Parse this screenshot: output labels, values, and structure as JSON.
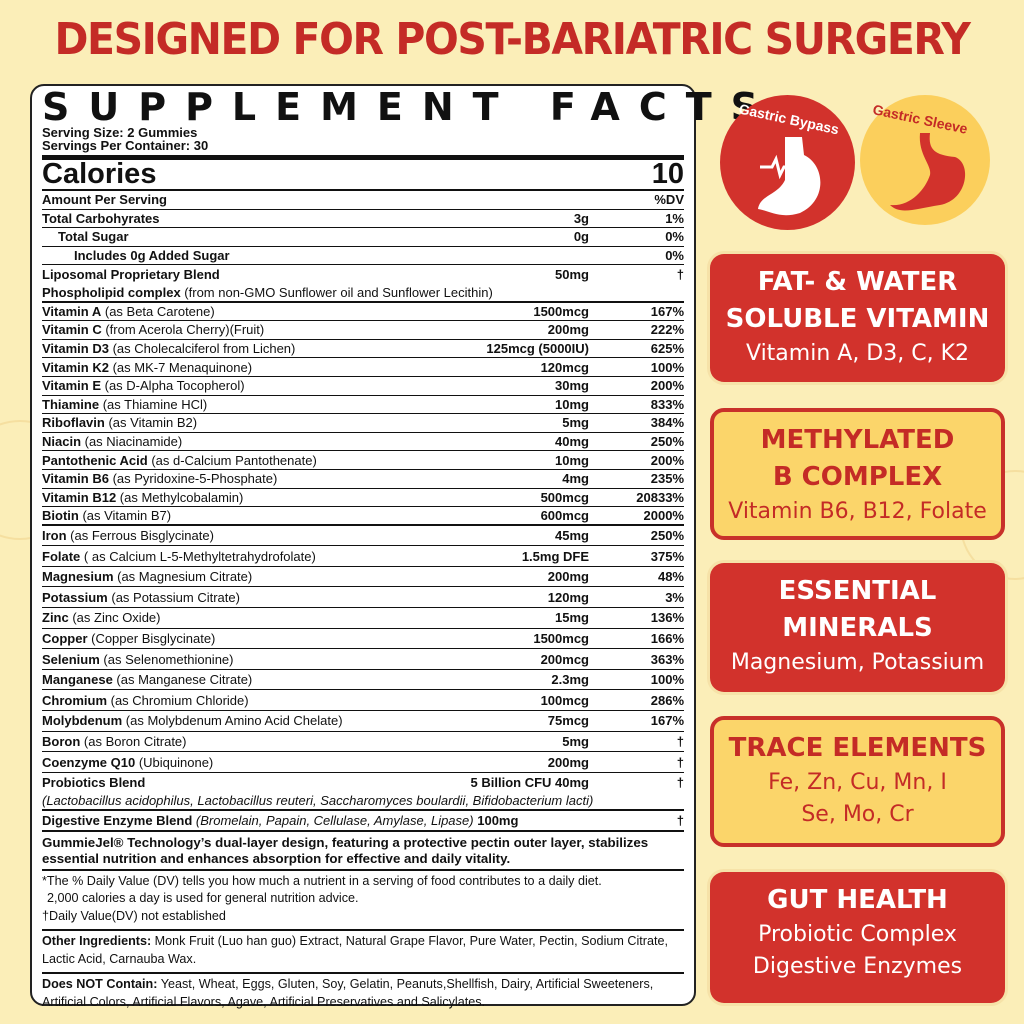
{
  "headline": "DESIGNED FOR POST-BARIATRIC SURGERY",
  "label": {
    "title": "SUPPLEMENT FACTS",
    "serving_size": "Serving Size: 2 Gummies",
    "servings_per_container": "Servings Per Container: 30",
    "calories_label": "Calories",
    "calories_value": "10",
    "amount_per_serving": "Amount Per Serving",
    "dv_header": "%DV",
    "rows": [
      {
        "name": "Total Carbohyrates",
        "desc": "",
        "amount": "3g",
        "dv": "1%",
        "indent": 0
      },
      {
        "name": "Total Sugar",
        "desc": "",
        "amount": "0g",
        "dv": "0%",
        "indent": 1
      },
      {
        "name": "Includes 0g Added Sugar",
        "desc": "",
        "amount": "",
        "dv": "0%",
        "indent": 2
      },
      {
        "name": "Liposomal Proprietary Blend",
        "desc": "",
        "amount": "50mg",
        "dv": "†",
        "indent": 0,
        "noline": true
      },
      {
        "name": "Phospholipid complex",
        "desc": " (from non-GMO Sunflower oil and Sunflower Lecithin)",
        "amount": "",
        "dv": "",
        "indent": 0
      },
      {
        "name": "Vitamin A",
        "desc": " (as Beta Carotene)",
        "amount": "1500mcg",
        "dv": "167%"
      },
      {
        "name": "Vitamin C",
        "desc": " (from Acerola Cherry)(Fruit)",
        "amount": "200mg",
        "dv": "222%"
      },
      {
        "name": "Vitamin D3",
        "desc": " (as Cholecalciferol from Lichen)",
        "amount": "125mcg (5000IU)",
        "dv": "625%"
      },
      {
        "name": "Vitamin K2",
        "desc": " (as MK-7 Menaquinone)",
        "amount": "120mcg",
        "dv": "100%"
      },
      {
        "name": "Vitamin E",
        "desc": " (as D-Alpha Tocopherol)",
        "amount": "30mg",
        "dv": "200%"
      },
      {
        "name": "Thiamine",
        "desc": " (as Thiamine HCl)",
        "amount": "10mg",
        "dv": "833%"
      },
      {
        "name": "Riboflavin",
        "desc": " (as Vitamin B2)",
        "amount": "5mg",
        "dv": "384%"
      },
      {
        "name": "Niacin",
        "desc": " (as Niacinamide)",
        "amount": "40mg",
        "dv": "250%"
      },
      {
        "name": "Pantothenic Acid",
        "desc": " (as d-Calcium Pantothenate)",
        "amount": "10mg",
        "dv": "200%"
      },
      {
        "name": "Vitamin B6",
        "desc": " (as Pyridoxine-5-Phosphate)",
        "amount": "4mg",
        "dv": "235%"
      },
      {
        "name": "Vitamin B12",
        "desc": " (as Methylcobalamin)",
        "amount": "500mcg",
        "dv": "20833%"
      },
      {
        "name": "Biotin",
        "desc": " (as Vitamin B7)",
        "amount": "600mcg",
        "dv": "2000%"
      },
      {
        "name": "Iron",
        "desc": " (as Ferrous Bisglycinate)",
        "amount": "45mg",
        "dv": "250%",
        "tall": true
      },
      {
        "name": "Folate",
        "desc": " ( as Calcium L-5-Methyltetrahydrofolate)",
        "amount": "1.5mg DFE",
        "dv": "375%",
        "tall": true
      },
      {
        "name": "Magnesium",
        "desc": " (as Magnesium Citrate)",
        "amount": "200mg",
        "dv": "48%",
        "tall": true
      },
      {
        "name": "Potassium",
        "desc": " (as Potassium Citrate)",
        "amount": "120mg",
        "dv": "3%",
        "tall": true
      },
      {
        "name": "Zinc",
        "desc": " (as Zinc Oxide)",
        "amount": "15mg",
        "dv": "136%",
        "tall": true
      },
      {
        "name": "Copper",
        "desc": " (Copper Bisglycinate)",
        "amount": "1500mcg",
        "dv": "166%",
        "tall": true
      },
      {
        "name": "Selenium",
        "desc": " (as Selenomethionine)",
        "amount": "200mcg",
        "dv": "363%",
        "tall": true
      },
      {
        "name": "Manganese",
        "desc": " (as Manganese Citrate)",
        "amount": "2.3mg",
        "dv": "100%",
        "tall": true
      },
      {
        "name": "Chromium",
        "desc": " (as Chromium Chloride)",
        "amount": "100mcg",
        "dv": "286%",
        "tall": true
      },
      {
        "name": "Molybdenum",
        "desc": " (as Molybdenum Amino Acid Chelate)",
        "amount": "75mcg",
        "dv": "167%",
        "tall": true
      },
      {
        "name": "Boron",
        "desc": " (as Boron Citrate)",
        "amount": "5mg",
        "dv": "†",
        "tall": true
      },
      {
        "name": "Coenzyme Q10",
        "desc": " (Ubiquinone)",
        "amount": "200mg",
        "dv": "†",
        "tall": true
      }
    ],
    "probiotics": {
      "name": "Probiotics Blend",
      "amount": "5 Billion CFU 40mg",
      "dv": "†",
      "strains": "(Lactobacillus acidophilus, Lactobacillus reuteri, Saccharomyces boulardii, Bifidobacterium lacti)"
    },
    "enzyme": {
      "name": "Digestive  Enzyme Blend",
      "desc": " (Bromelain, Papain, Cellulase, Amylase, Lipase)",
      "amount": "100mg",
      "dv": "†"
    },
    "gummiejel": "GummieJel® Technology’s dual-layer design, featuring a protective pectin outer layer, stabilizes essential nutrition and enhances absorption for effective and daily vitality.",
    "footnote1": "*The % Daily Value (DV) tells you how much a nutrient in a serving of food contributes to a daily diet.",
    "footnote2": "2,000 calories a day is used for general nutrition advice.",
    "footnote3": "†Daily Value(DV) not established",
    "other_label": "Other Ingredients:",
    "other_text": " Monk Fruit (Luo han guo) Extract, Natural Grape Flavor, Pure Water, Pectin, Sodium Citrate, Lactic Acid, Carnauba Wax.",
    "not_label": "Does NOT Contain:",
    "not_text": " Yeast, Wheat, Eggs, Gluten, Soy, Gelatin, Peanuts,Shellfish, Dairy, Artificial Sweeteners, Artificial Colors, Artificial Flavors, Agave, Artificial Preservatives and Salicylates."
  },
  "badges": {
    "bypass": "Gastric Bypass",
    "sleeve": "Gastric Sleeve"
  },
  "cards": [
    {
      "title1": "FAT- & WATER",
      "title2": "SOLUBLE VITAMIN",
      "sub1": "Vitamin A, D3, C, K2",
      "sub2": "",
      "style": "red"
    },
    {
      "title1": "METHYLATED",
      "title2": "B COMPLEX",
      "sub1": "Vitamin B6, B12, Folate",
      "sub2": "",
      "style": "yellow"
    },
    {
      "title1": "ESSENTIAL",
      "title2": "MINERALS",
      "sub1": "Magnesium, Potassium",
      "sub2": "",
      "style": "red"
    },
    {
      "title1": "TRACE ELEMENTS",
      "title2": "",
      "sub1": "Fe, Zn, Cu, Mn, I",
      "sub2": "Se, Mo, Cr",
      "style": "yellow"
    },
    {
      "title1": "GUT HEALTH",
      "title2": "",
      "sub1": "Probiotic Complex",
      "sub2": "Digestive Enzymes",
      "style": "red"
    }
  ],
  "colors": {
    "red": "#d2322c",
    "yellow": "#fbd56a",
    "background": "#fbeeb8",
    "headline": "#c42b26"
  }
}
